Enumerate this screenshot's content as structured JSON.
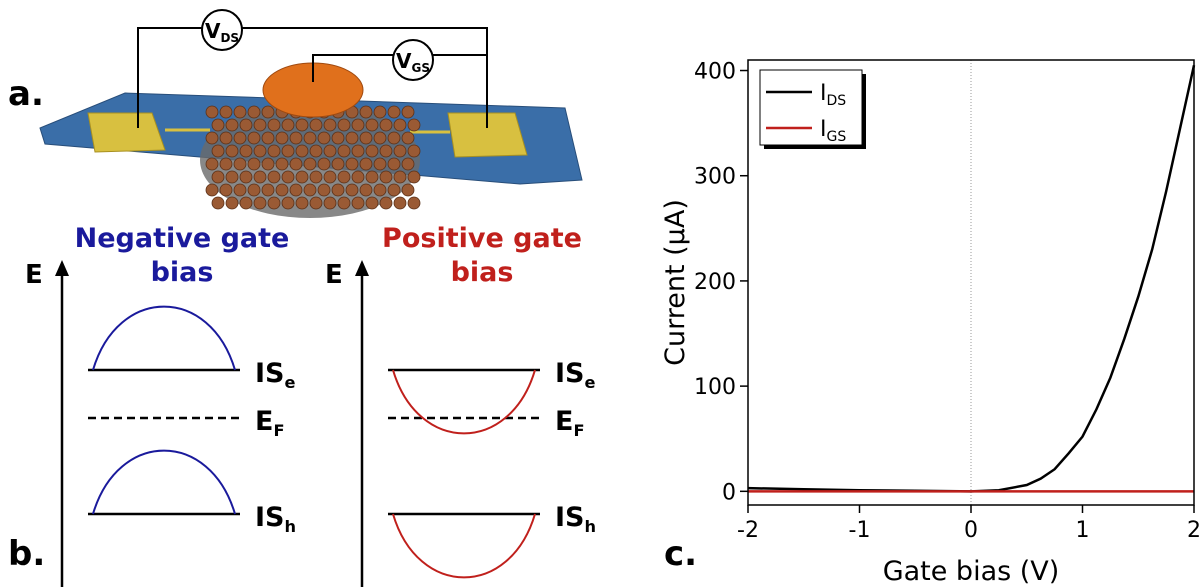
{
  "panel_labels": [
    "a.",
    "b.",
    "c."
  ],
  "device": {
    "vds": {
      "base": "V",
      "sub": "DS"
    },
    "vgs": {
      "base": "V",
      "sub": "GS"
    }
  },
  "bands": [
    {
      "title": "Negative gate bias",
      "axis": "E",
      "color": "#1a1a9c",
      "levels": [
        {
          "base": "IS",
          "sub": "e"
        },
        {
          "base": "E",
          "sub": "F"
        },
        {
          "base": "IS",
          "sub": "h"
        }
      ]
    },
    {
      "title": "Positive gate bias",
      "axis": "E",
      "color": "#c0201c",
      "levels": [
        {
          "base": "IS",
          "sub": "e"
        },
        {
          "base": "E",
          "sub": "F"
        },
        {
          "base": "IS",
          "sub": "h"
        }
      ]
    }
  ],
  "chart_data": {
    "type": "line",
    "x_label": "Gate bias (V)",
    "y_label": "Current (μA)",
    "x": [
      -2,
      -1.5,
      -1,
      -0.5,
      0,
      0.25,
      0.5,
      0.625,
      0.75,
      0.875,
      1,
      1.125,
      1.25,
      1.375,
      1.5,
      1.625,
      1.75,
      1.875,
      2
    ],
    "series": [
      {
        "name": "I",
        "name_sub": "DS",
        "color": "#000000",
        "values": [
          3,
          2,
          1,
          0.5,
          0,
          1,
          6,
          12,
          21,
          36,
          52,
          78,
          108,
          145,
          185,
          230,
          285,
          345,
          405
        ]
      },
      {
        "name": "I",
        "name_sub": "GS",
        "color": "#c0201c",
        "values": [
          0,
          0,
          0,
          0,
          0,
          0,
          0,
          0,
          0,
          0,
          0,
          0,
          0,
          0,
          0,
          0,
          0,
          0,
          0
        ]
      }
    ],
    "xlim": [
      -2,
      2
    ],
    "ylim": [
      -13,
      410
    ],
    "xticks": [
      -2,
      -1,
      0,
      1,
      2
    ],
    "yticks": [
      0,
      100,
      200,
      300,
      400
    ],
    "zero_line": true,
    "legend": "upper left"
  }
}
